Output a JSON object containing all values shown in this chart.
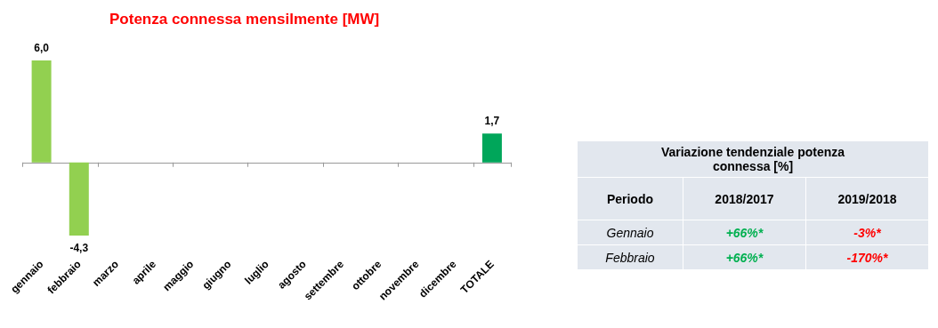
{
  "chart_data": [
    {
      "type": "bar",
      "title": "Potenza connessa mensilmente [MW]",
      "categories": [
        "gennaio",
        "febbraio",
        "marzo",
        "aprile",
        "maggio",
        "giugno",
        "luglio",
        "agosto",
        "settembre",
        "ottobre",
        "novembre",
        "dicembre",
        "TOTALE"
      ],
      "values": [
        6.0,
        -4.3,
        null,
        null,
        null,
        null,
        null,
        null,
        null,
        null,
        null,
        null,
        1.7
      ],
      "value_labels": [
        "6,0",
        "-4,3",
        null,
        null,
        null,
        null,
        null,
        null,
        null,
        null,
        null,
        null,
        "1,7"
      ],
      "colors": [
        "#92d050",
        "#92d050",
        "#92d050",
        "#92d050",
        "#92d050",
        "#92d050",
        "#92d050",
        "#92d050",
        "#92d050",
        "#92d050",
        "#92d050",
        "#92d050",
        "#00a65a"
      ],
      "tick_labels": "x"
    },
    {
      "type": "other",
      "title": "Variazione tendenziale potenza connessa [%]",
      "annotations": [
        "Periodo",
        "2018/2017",
        "2019/2018",
        "Gennaio",
        "+66%*",
        "-3%*",
        "Febbraio",
        "+66%*",
        "-170%*"
      ]
    }
  ]
}
